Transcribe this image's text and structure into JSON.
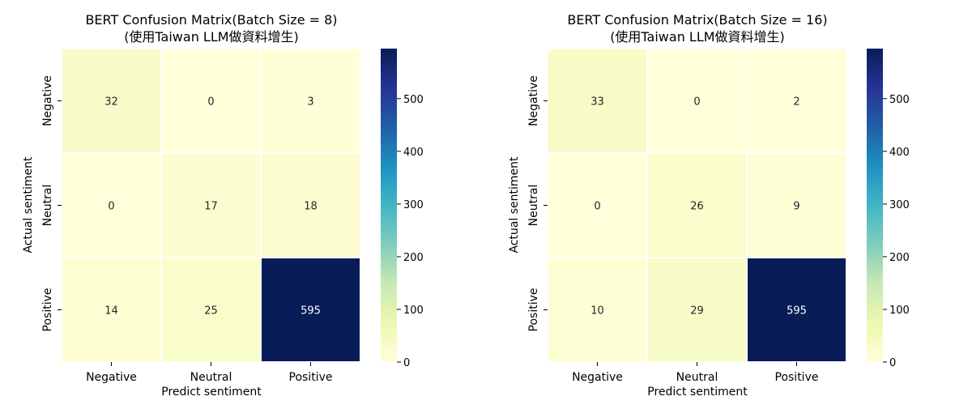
{
  "chart_data": [
    {
      "type": "heatmap",
      "title": "BERT Confusion Matrix(Batch Size = 8)",
      "subtitle": "(使用Taiwan LLM做資料增生)",
      "xlabel": "Predict sentiment",
      "ylabel": "Actual sentiment",
      "x_categories": [
        "Negative",
        "Neutral",
        "Positive"
      ],
      "y_categories": [
        "Negative",
        "Neutral",
        "Positive"
      ],
      "values": [
        [
          32,
          0,
          3
        ],
        [
          0,
          17,
          18
        ],
        [
          14,
          25,
          595
        ]
      ],
      "colorbar": {
        "min": 0,
        "max": 595,
        "ticks": [
          0,
          100,
          200,
          300,
          400,
          500
        ],
        "colormap": "YlGnBu"
      },
      "grid": false
    },
    {
      "type": "heatmap",
      "title": "BERT Confusion Matrix(Batch Size = 16)",
      "subtitle": "(使用Taiwan LLM做資料增生)",
      "xlabel": "Predict sentiment",
      "ylabel": "Actual sentiment",
      "x_categories": [
        "Negative",
        "Neutral",
        "Positive"
      ],
      "y_categories": [
        "Negative",
        "Neutral",
        "Positive"
      ],
      "values": [
        [
          33,
          0,
          2
        ],
        [
          0,
          26,
          9
        ],
        [
          10,
          29,
          595
        ]
      ],
      "colorbar": {
        "min": 0,
        "max": 595,
        "ticks": [
          0,
          100,
          200,
          300,
          400,
          500
        ],
        "colormap": "YlGnBu"
      },
      "grid": false
    }
  ]
}
